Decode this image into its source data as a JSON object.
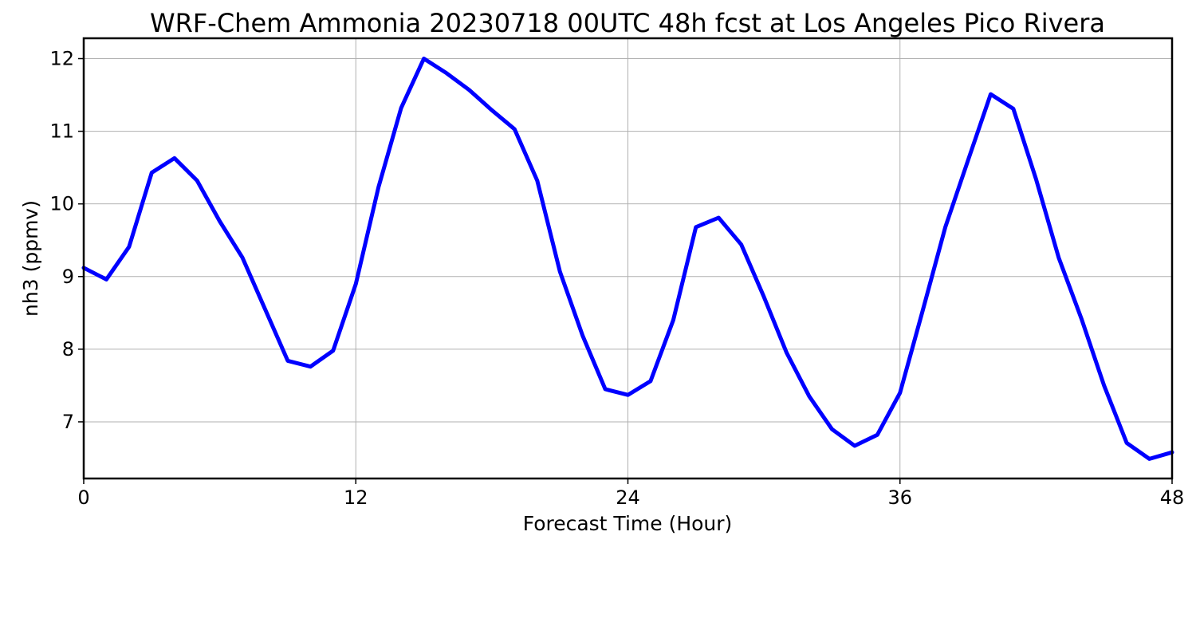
{
  "chart_data": {
    "type": "line",
    "title": "WRF-Chem Ammonia  20230718 00UTC 48h fcst at Los Angeles Pico Rivera",
    "xlabel": "Forecast Time (Hour)",
    "ylabel": "nh3  (ppmv)",
    "xlim": [
      0,
      48
    ],
    "ylim": [
      6.22,
      12.28
    ],
    "xticks": [
      0,
      12,
      24,
      36,
      48
    ],
    "yticks": [
      7,
      8,
      9,
      10,
      11,
      12
    ],
    "grid": true,
    "series": [
      {
        "color": "#0000ff",
        "x": [
          0,
          1,
          2,
          3,
          4,
          5,
          6,
          7,
          8,
          9,
          10,
          11,
          12,
          13,
          14,
          15,
          16,
          17,
          18,
          19,
          20,
          21,
          22,
          23,
          24,
          25,
          26,
          27,
          28,
          29,
          30,
          31,
          32,
          33,
          34,
          35,
          36,
          37,
          38,
          39,
          40,
          41,
          42,
          43,
          44,
          45,
          46,
          47,
          48
        ],
        "values": [
          9.12,
          8.96,
          9.41,
          10.43,
          10.63,
          10.32,
          9.76,
          9.26,
          8.55,
          7.84,
          7.76,
          7.98,
          8.9,
          10.23,
          11.32,
          12.0,
          11.8,
          11.57,
          11.29,
          11.03,
          10.32,
          9.07,
          8.19,
          7.45,
          7.37,
          7.56,
          8.4,
          9.68,
          9.81,
          9.44,
          8.72,
          7.95,
          7.35,
          6.9,
          6.67,
          6.82,
          7.4,
          8.53,
          9.68,
          10.6,
          11.51,
          11.31,
          10.34,
          9.26,
          8.42,
          7.5,
          6.71,
          6.49,
          6.58
        ]
      }
    ]
  }
}
